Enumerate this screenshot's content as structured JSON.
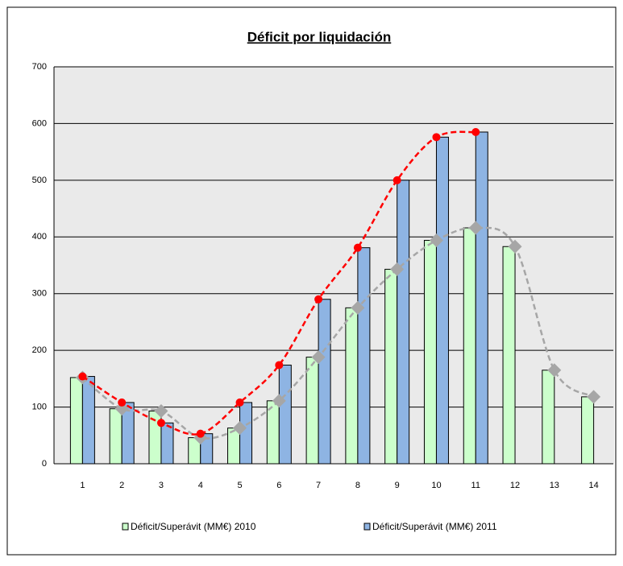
{
  "chart_data": {
    "type": "bar",
    "title": "Déficit por liquidación",
    "categories": [
      "1",
      "2",
      "3",
      "4",
      "5",
      "6",
      "7",
      "8",
      "9",
      "10",
      "11",
      "12",
      "13",
      "14"
    ],
    "series": [
      {
        "name": "Déficit/Superávit (MM€) 2010",
        "color": "#ccffcc",
        "line_color": "#a6a6a6",
        "values": [
          152,
          97,
          93,
          46,
          63,
          111,
          188,
          275,
          343,
          394,
          416,
          383,
          165,
          118
        ]
      },
      {
        "name": "Déficit/Superávit (MM€) 2011",
        "color": "#8eb4e3",
        "line_color": "#ff0000",
        "values": [
          154,
          108,
          72,
          53,
          108,
          174,
          290,
          381,
          500,
          576,
          585,
          null,
          null,
          null
        ]
      }
    ],
    "ylim": [
      0,
      700
    ],
    "yticks": [
      0,
      100,
      200,
      300,
      400,
      500,
      600,
      700
    ],
    "grid": true,
    "legend": "bottom"
  }
}
